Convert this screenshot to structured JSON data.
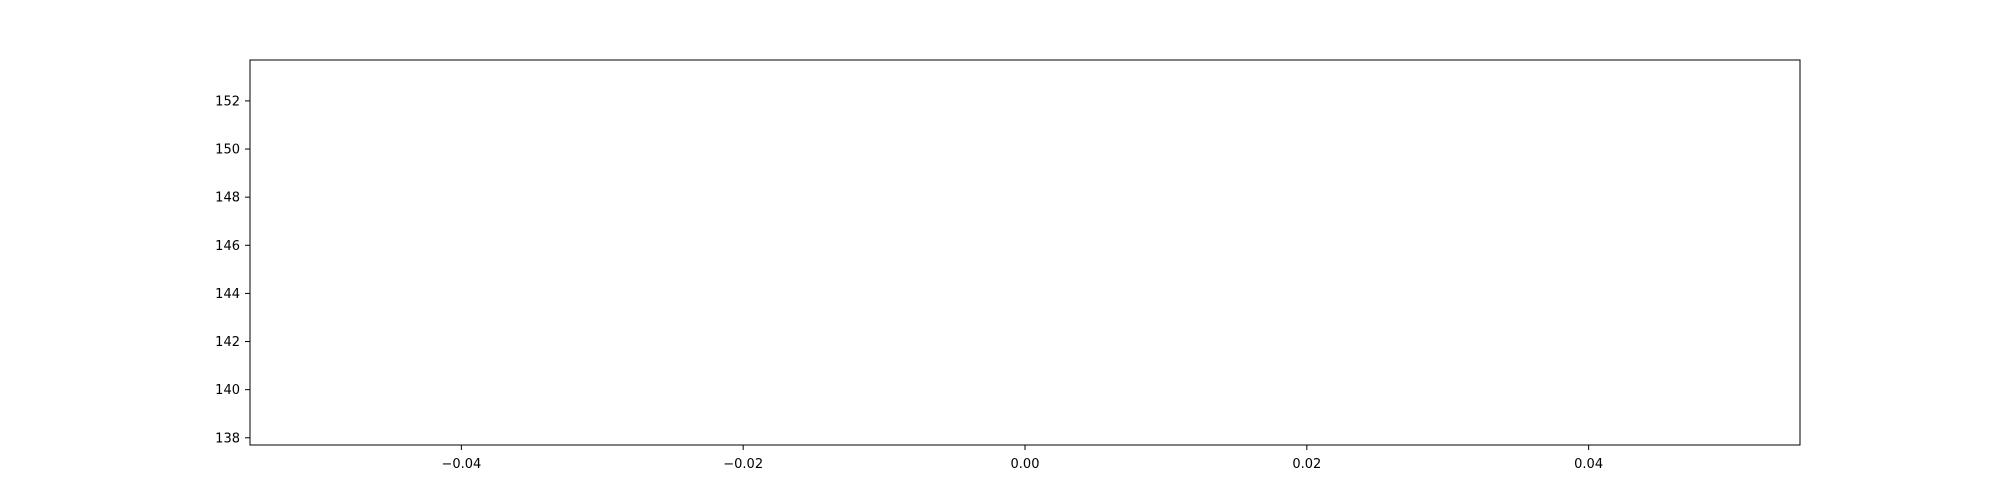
{
  "chart_data": {
    "type": "line",
    "title": "",
    "xlabel": "",
    "ylabel": "",
    "series": [],
    "xlim": [
      -0.055,
      0.055
    ],
    "ylim": [
      137.7,
      153.7
    ],
    "x_ticks": [
      -0.04,
      -0.02,
      0.0,
      0.02,
      0.04
    ],
    "x_tick_labels": [
      "−0.04",
      "−0.02",
      "0.00",
      "0.02",
      "0.04"
    ],
    "y_ticks": [
      138,
      140,
      142,
      144,
      146,
      148,
      150,
      152
    ],
    "y_tick_labels": [
      "138",
      "140",
      "142",
      "144",
      "146",
      "148",
      "150",
      "152"
    ],
    "grid": false,
    "legend": "none"
  }
}
